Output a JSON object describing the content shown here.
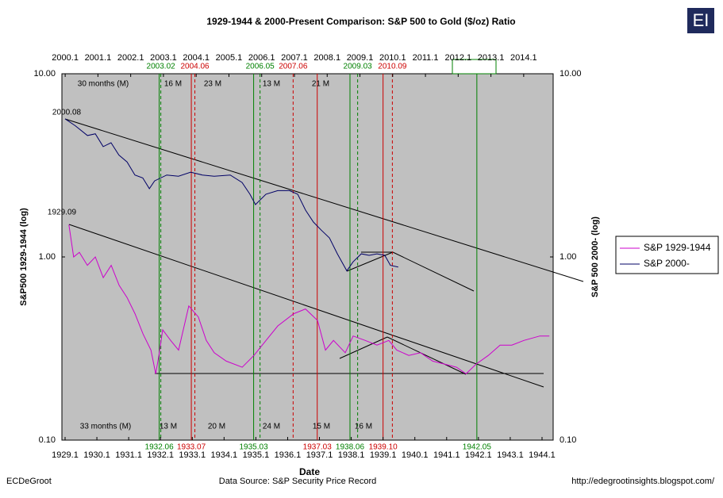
{
  "chart_data": {
    "type": "line",
    "title": "1929-1944 & 2000-Present Comparison:  S&P 500 to Gold ($/oz) Ratio",
    "x_label": "Date",
    "y_label": "S&P500 1929-1944 (log)",
    "y2_label": "S&P 500 2000- (log)",
    "log_scale": true,
    "legend": "right",
    "xlim": [
      1929,
      1944.45
    ],
    "xticks": [
      1929.1,
      1930.1,
      1931.1,
      1932.1,
      1933.1,
      1934.1,
      1935.1,
      1936.1,
      1937.1,
      1938.1,
      1939.1,
      1940.1,
      1941.1,
      1942.1,
      1943.1,
      1944.1
    ],
    "x2lim": [
      2000,
      2015
    ],
    "x2ticks": [
      2000.1,
      2001.1,
      2002.1,
      2003.1,
      2004.1,
      2005.1,
      2006.1,
      2007.1,
      2008.1,
      2009.1,
      2010.1,
      2011.1,
      2012.1,
      2013.1,
      2014.1
    ],
    "ylim": [
      0.1,
      10
    ],
    "yticks": [
      {
        "value": 0.1,
        "label": "0.10"
      },
      {
        "value": 1,
        "label": "1.00"
      },
      {
        "value": 10,
        "label": "10.00"
      }
    ],
    "y2lim": [
      0.1,
      10
    ],
    "y2ticks": [
      {
        "value": 0.1,
        "label": "0.10"
      },
      {
        "value": 1,
        "label": "1.00"
      },
      {
        "value": 10,
        "label": "10.00"
      }
    ],
    "series": [
      {
        "name": "S&P 1929-1944",
        "color": "#cc00cc",
        "x": [
          1929.22,
          1929.37,
          1929.55,
          1929.8,
          1930.05,
          1930.3,
          1930.55,
          1930.8,
          1931.05,
          1931.3,
          1931.55,
          1931.8,
          1931.95,
          1932.05,
          1932.17,
          1932.42,
          1932.67,
          1932.99,
          1933.29,
          1933.54,
          1933.79,
          1934.17,
          1934.67,
          1935.04,
          1935.42,
          1935.79,
          1936.29,
          1936.66,
          1937.04,
          1937.29,
          1937.54,
          1937.91,
          1938.16,
          1938.54,
          1938.91,
          1939.28,
          1939.53,
          1939.91,
          1940.28,
          1940.66,
          1941.03,
          1941.41,
          1941.71,
          1942.03,
          1942.41,
          1942.78,
          1943.15,
          1943.53,
          1944.03,
          1944.33
        ],
        "values": [
          1.5,
          1.0,
          1.06,
          0.9,
          1.0,
          0.77,
          0.9,
          0.7,
          0.6,
          0.49,
          0.38,
          0.31,
          0.23,
          0.29,
          0.4,
          0.35,
          0.31,
          0.54,
          0.47,
          0.35,
          0.3,
          0.27,
          0.25,
          0.29,
          0.35,
          0.42,
          0.49,
          0.52,
          0.45,
          0.31,
          0.35,
          0.3,
          0.37,
          0.35,
          0.33,
          0.35,
          0.31,
          0.29,
          0.3,
          0.27,
          0.26,
          0.25,
          0.23,
          0.26,
          0.29,
          0.33,
          0.33,
          0.35,
          0.37,
          0.37
        ]
      },
      {
        "name": "S&P 2000-",
        "color": "#000066",
        "axis": "y2",
        "x_axis": "x2",
        "x": [
          2000.1,
          2000.41,
          2000.78,
          2001.02,
          2001.26,
          2001.5,
          2001.74,
          2001.99,
          2002.23,
          2002.47,
          2002.67,
          2002.83,
          2003.2,
          2003.56,
          2003.93,
          2004.29,
          2004.65,
          2005.14,
          2005.5,
          2005.74,
          2005.91,
          2006.23,
          2006.59,
          2006.95,
          2007.2,
          2007.44,
          2007.68,
          2007.92,
          2008.17,
          2008.41,
          2008.7,
          2008.89,
          2009.14,
          2009.38,
          2009.62,
          2009.86,
          2010.03,
          2010.27
        ],
        "values": [
          5.67,
          5.2,
          4.6,
          4.7,
          4.0,
          4.2,
          3.6,
          3.3,
          2.8,
          2.7,
          2.36,
          2.6,
          2.8,
          2.76,
          2.9,
          2.8,
          2.76,
          2.8,
          2.55,
          2.2,
          1.93,
          2.2,
          2.3,
          2.3,
          2.2,
          1.8,
          1.55,
          1.4,
          1.27,
          1.04,
          0.84,
          0.94,
          1.04,
          1.02,
          1.04,
          1.02,
          0.9,
          0.88
        ]
      }
    ],
    "markers": [
      {
        "label": "1932.06",
        "value": 1932.06,
        "axis": "x",
        "color": "#008000",
        "dashed": false
      },
      {
        "label": "1933.07",
        "value": 1933.07,
        "axis": "x",
        "color": "#cc0000",
        "dashed": false
      },
      {
        "label": "1935.03",
        "value": 1935.03,
        "axis": "x",
        "color": "#008000",
        "dashed": false
      },
      {
        "label": "1937.03",
        "value": 1937.03,
        "axis": "x",
        "color": "#cc0000",
        "dashed": false
      },
      {
        "label": "1938.06",
        "value": 1938.06,
        "axis": "x",
        "color": "#008000",
        "dashed": false
      },
      {
        "label": "1939.10",
        "value": 1939.1,
        "axis": "x",
        "color": "#cc0000",
        "dashed": false
      },
      {
        "label": "1942.05",
        "value": 1942.05,
        "axis": "x",
        "color": "#008000",
        "dashed": false
      },
      {
        "label": "2003.02",
        "value": 2003.02,
        "axis": "x2",
        "color": "#008000",
        "dashed": true
      },
      {
        "label": "2004.06",
        "value": 2004.06,
        "axis": "x2",
        "color": "#cc0000",
        "dashed": true
      },
      {
        "label": "2006.05",
        "value": 2006.05,
        "axis": "x2",
        "color": "#008000",
        "dashed": true
      },
      {
        "label": "2007.06",
        "value": 2007.06,
        "axis": "x2",
        "color": "#cc0000",
        "dashed": true
      },
      {
        "label": "2009.03",
        "value": 2009.03,
        "axis": "x2",
        "color": "#008000",
        "dashed": true
      },
      {
        "label": "2010.09",
        "value": 2010.09,
        "axis": "x2",
        "color": "#cc0000",
        "dashed": true
      }
    ],
    "durations_top": [
      "30 months (M)",
      "16 M",
      "23 M",
      "13 M",
      "21 M"
    ],
    "durations_bottom": [
      "33 months (M)",
      "13 M",
      "20 M",
      "24 M",
      "15 M",
      "16 M"
    ],
    "annotations": [
      "2000.08",
      "1929.09"
    ],
    "footer_left": "ECDeGroot",
    "footer_center": "Data Source:  S&P Security Price Record",
    "footer_right": "http://edegrootinsights.blogspot.com/",
    "logo": "EI"
  }
}
